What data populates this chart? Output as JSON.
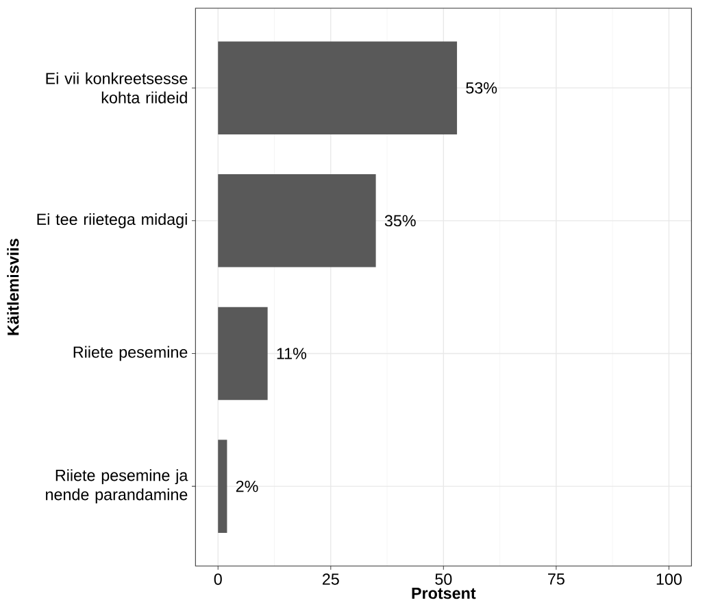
{
  "chart_data": {
    "type": "bar",
    "orientation": "horizontal",
    "xlabel": "Protsent",
    "ylabel": "Käitlemisviis",
    "categories": [
      "Ei vii konkreetsesse kohta riideid",
      "Ei tee riietega midagi",
      "Riiete pesemine",
      "Riiete pesemine ja nende parandamine"
    ],
    "values": [
      53,
      35,
      11,
      2
    ],
    "value_labels": [
      "53%",
      "35%",
      "11%",
      "2%"
    ],
    "color": "#595959",
    "xlim": [
      -5,
      105
    ],
    "xticks": [
      0,
      25,
      50,
      75,
      100
    ],
    "grid": true
  }
}
